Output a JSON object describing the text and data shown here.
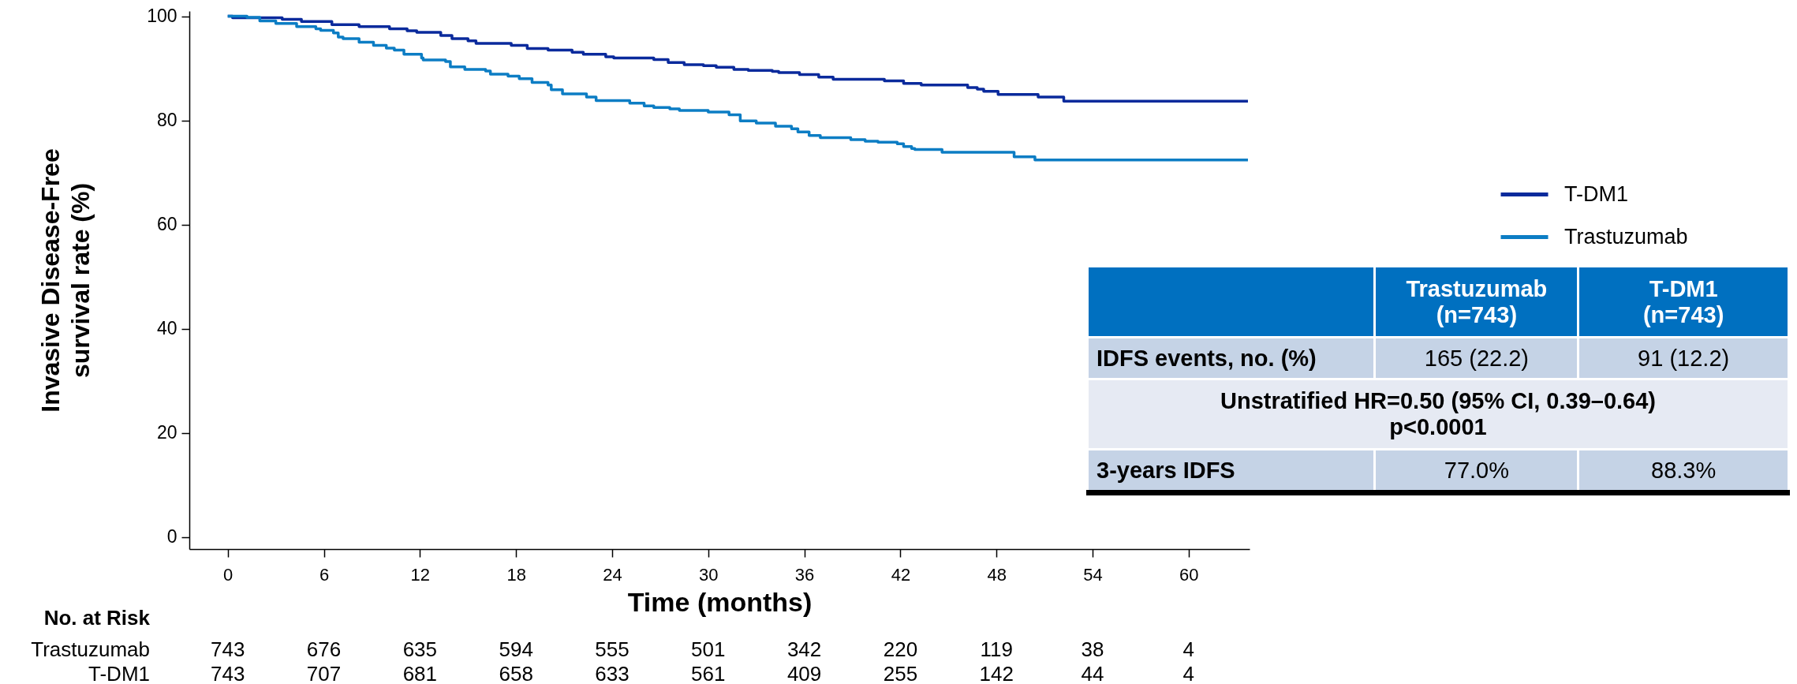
{
  "chart_data": {
    "type": "step",
    "xlabel": "Time (months)",
    "ylabel": "Invasive Disease-Free survival rate (%)",
    "xlim": [
      -2.4,
      63.8
    ],
    "xticks": [
      0,
      6,
      12,
      18,
      24,
      30,
      36,
      42,
      48,
      54,
      60
    ],
    "ylim": [
      -2.3,
      101
    ],
    "yticks": [
      0,
      20,
      40,
      60,
      80,
      100
    ],
    "legend": "right",
    "series": [
      {
        "name": "T-DM1",
        "color": "#0a2a9c",
        "x": [
          0,
          0.3,
          3.4,
          4.6,
          6.5,
          8.2,
          10.1,
          11.2,
          11.8,
          13.3,
          14.0,
          15.0,
          15.5,
          17.7,
          18.7,
          20.0,
          21.5,
          22.2,
          23.6,
          24.1,
          26.6,
          27.5,
          28.5,
          29.7,
          30.5,
          31.6,
          32.5,
          34.0,
          34.4,
          35.7,
          36.9,
          37.8,
          41.0,
          42.2,
          43.3,
          46.2,
          46.8,
          47.2,
          48.1,
          50.6,
          52.2,
          63.7
        ],
        "values": [
          100,
          99.7,
          99.4,
          99.0,
          98.4,
          98.0,
          97.6,
          97.2,
          96.9,
          96.3,
          95.7,
          95.3,
          94.8,
          94.4,
          93.8,
          93.5,
          93.1,
          92.7,
          92.2,
          92.0,
          91.7,
          91.1,
          90.7,
          90.5,
          90.2,
          89.8,
          89.6,
          89.4,
          89.2,
          88.8,
          88.3,
          87.9,
          87.6,
          87.1,
          86.8,
          86.3,
          86.0,
          85.6,
          85.0,
          84.5,
          83.7,
          83.7
        ]
      },
      {
        "name": "Trastuzumab",
        "color": "#0c7dc4",
        "x": [
          0,
          1.2,
          2.0,
          3.0,
          4.3,
          5.5,
          5.8,
          6.6,
          6.9,
          7.2,
          8.2,
          9.1,
          9.9,
          10.4,
          11.0,
          12.1,
          12.2,
          13.6,
          13.9,
          14.8,
          16.1,
          16.4,
          17.5,
          18.2,
          19.0,
          20.0,
          20.2,
          20.9,
          22.4,
          23.0,
          25.1,
          26.0,
          26.6,
          27.6,
          28.2,
          30.0,
          31.3,
          32.0,
          33.0,
          34.2,
          35.2,
          35.6,
          36.3,
          37.0,
          38.9,
          39.8,
          40.6,
          41.8,
          42.2,
          42.7,
          42.9,
          44.6,
          49.1,
          50.4,
          63.7
        ],
        "values": [
          100,
          99.8,
          99.1,
          98.6,
          98.0,
          97.6,
          97.3,
          96.8,
          96.0,
          95.7,
          95.0,
          94.4,
          93.9,
          93.5,
          92.7,
          92.0,
          91.6,
          91.3,
          90.3,
          89.8,
          89.5,
          88.9,
          88.5,
          88.0,
          87.3,
          86.8,
          85.9,
          85.1,
          84.5,
          83.8,
          83.3,
          82.8,
          82.5,
          82.2,
          81.9,
          81.6,
          81.1,
          79.9,
          79.5,
          78.9,
          78.4,
          77.8,
          77.1,
          76.7,
          76.3,
          76.0,
          75.8,
          75.5,
          75.0,
          74.6,
          74.4,
          73.9,
          73.0,
          72.4,
          72.4
        ]
      }
    ],
    "annotations": [
      "\tTrastuzumab (n=743)\tT-DM1 (n=743)",
      "IDFS events, no. (%)\t165 (22.2)\t91 (12.2)",
      "Unstratified HR=0.50 (95% CI, 0.39–0.64) p<0.0001",
      "3-years IDFS\t77.0%\t88.3%",
      "No. at Risk",
      "Trastuzumab\t743\t676\t635\t594\t555\t501\t342\t220\t119\t38\t4",
      "T-DM1\t743\t707\t681\t658\t633\t561\t409\t255\t142\t44\t4"
    ]
  }
}
